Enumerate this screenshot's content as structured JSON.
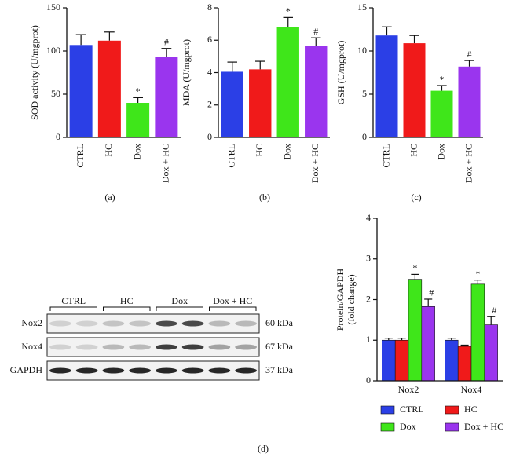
{
  "chart_data": [
    {
      "type": "bar",
      "panel_label": "(a)",
      "ylabel": "SOD activity (U/mgprot)",
      "categories": [
        "CTRL",
        "HC",
        "Dox",
        "Dox + HC"
      ],
      "values": [
        107,
        112,
        40,
        93
      ],
      "errors": [
        12,
        10,
        6,
        10
      ],
      "colors": [
        "#2b3fe6",
        "#f01a1a",
        "#3fe61a",
        "#9a35ee"
      ],
      "annotations": [
        null,
        null,
        "*",
        "#"
      ],
      "ylim": [
        0,
        150
      ],
      "yticks": [
        0,
        50,
        100,
        150
      ]
    },
    {
      "type": "bar",
      "panel_label": "(b)",
      "ylabel": "MDA (U/mgprot)",
      "categories": [
        "CTRL",
        "HC",
        "Dox",
        "Dox + HC"
      ],
      "values": [
        4.05,
        4.2,
        6.8,
        5.65
      ],
      "errors": [
        0.6,
        0.5,
        0.6,
        0.5
      ],
      "colors": [
        "#2b3fe6",
        "#f01a1a",
        "#3fe61a",
        "#9a35ee"
      ],
      "annotations": [
        null,
        null,
        "*",
        "#"
      ],
      "ylim": [
        0,
        8
      ],
      "yticks": [
        0,
        2,
        4,
        6,
        8
      ]
    },
    {
      "type": "bar",
      "panel_label": "(c)",
      "ylabel": "GSH (U/mgprot)",
      "categories": [
        "CTRL",
        "HC",
        "Dox",
        "Dox + HC"
      ],
      "values": [
        11.8,
        10.9,
        5.4,
        8.2
      ],
      "errors": [
        1.0,
        0.9,
        0.6,
        0.7
      ],
      "colors": [
        "#2b3fe6",
        "#f01a1a",
        "#3fe61a",
        "#9a35ee"
      ],
      "annotations": [
        null,
        null,
        "*",
        "#"
      ],
      "ylim": [
        0,
        15
      ],
      "yticks": [
        0,
        5,
        10,
        15
      ]
    },
    {
      "type": "grouped_bar",
      "panel_label": "(d)",
      "ylabel": [
        "Protein/GAPDH",
        "(fold change)"
      ],
      "categories": [
        "Nox2",
        "Nox4"
      ],
      "ylim": [
        0,
        4
      ],
      "yticks": [
        0,
        1,
        2,
        3,
        4
      ],
      "legend": "bottom",
      "series": [
        {
          "name": "CTRL",
          "color": "#2b3fe6",
          "values": [
            1.0,
            1.0
          ],
          "errors": [
            0.05,
            0.05
          ],
          "annotations": [
            null,
            null
          ]
        },
        {
          "name": "HC",
          "color": "#f01a1a",
          "values": [
            1.0,
            0.85
          ],
          "errors": [
            0.05,
            0.03
          ],
          "annotations": [
            null,
            null
          ]
        },
        {
          "name": "Dox",
          "color": "#3fe61a",
          "values": [
            2.5,
            2.38
          ],
          "errors": [
            0.12,
            0.1
          ],
          "annotations": [
            "*",
            "*"
          ]
        },
        {
          "name": "Dox + HC",
          "color": "#9a35ee",
          "values": [
            1.83,
            1.38
          ],
          "errors": [
            0.18,
            0.2
          ],
          "annotations": [
            "#",
            "#"
          ]
        }
      ]
    }
  ],
  "blot": {
    "groups": [
      "CTRL",
      "HC",
      "Dox",
      "Dox + HC"
    ],
    "rows": [
      {
        "name": "Nox2",
        "size": "60 kDa"
      },
      {
        "name": "Nox4",
        "size": "67 kDa"
      },
      {
        "name": "GAPDH",
        "size": "37 kDa"
      }
    ]
  }
}
